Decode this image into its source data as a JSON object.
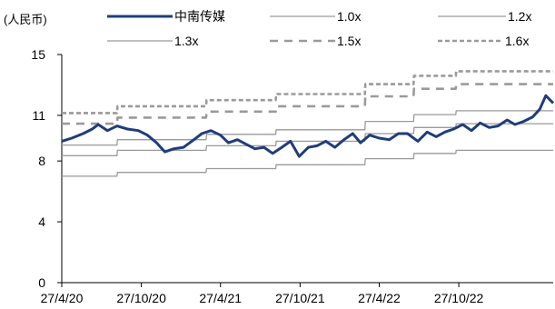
{
  "chart_data": {
    "type": "line",
    "unit_label": "(人民币)",
    "title": "",
    "xlabel": "",
    "ylabel": "",
    "ylim": [
      0,
      15
    ],
    "yticks": [
      0,
      4,
      8,
      11,
      15
    ],
    "xlim": [
      "2020-04-27",
      "2023-06-01"
    ],
    "xtick_labels": [
      "27/4/20",
      "27/10/20",
      "27/4/21",
      "27/10/21",
      "27/4/22",
      "27/10/22"
    ],
    "xtick_dates": [
      "2020-04-27",
      "2020-10-27",
      "2021-04-27",
      "2021-10-27",
      "2022-04-27",
      "2022-10-27"
    ],
    "grid": false,
    "legend_position": "top",
    "colors": {
      "price": "#1f3d7a",
      "band_1.0x": "#9a9a9a",
      "band_1.2x": "#9a9a9a",
      "band_1.3x": "#9a9a9a",
      "band_1.5x": "#9a9a9a",
      "band_1.6x": "#9a9a9a"
    },
    "series": [
      {
        "name": "中南传媒",
        "style": "solid-thick",
        "x": [
          "2020-04-27",
          "2020-05-20",
          "2020-06-15",
          "2020-07-06",
          "2020-07-20",
          "2020-08-10",
          "2020-09-01",
          "2020-09-25",
          "2020-10-20",
          "2020-11-10",
          "2020-12-01",
          "2020-12-20",
          "2021-01-10",
          "2021-02-01",
          "2021-02-25",
          "2021-03-15",
          "2021-04-05",
          "2021-04-27",
          "2021-05-15",
          "2021-06-05",
          "2021-06-25",
          "2021-07-15",
          "2021-08-05",
          "2021-08-25",
          "2021-09-15",
          "2021-10-05",
          "2021-10-25",
          "2021-11-15",
          "2021-12-05",
          "2021-12-25",
          "2022-01-15",
          "2022-02-05",
          "2022-02-25",
          "2022-03-15",
          "2022-04-05",
          "2022-04-27",
          "2022-05-20",
          "2022-06-10",
          "2022-07-01",
          "2022-07-25",
          "2022-08-15",
          "2022-09-05",
          "2022-09-25",
          "2022-10-15",
          "2022-11-05",
          "2022-11-25",
          "2022-12-15",
          "2023-01-05",
          "2023-01-25",
          "2023-02-15",
          "2023-03-05",
          "2023-03-25",
          "2023-04-15",
          "2023-05-01",
          "2023-05-15",
          "2023-06-01"
        ],
        "values": [
          9.3,
          9.5,
          9.8,
          10.1,
          10.4,
          10.0,
          10.3,
          10.1,
          10.0,
          9.7,
          9.2,
          8.6,
          8.8,
          8.9,
          9.4,
          9.8,
          10.0,
          9.7,
          9.2,
          9.4,
          9.1,
          8.8,
          8.9,
          8.5,
          8.9,
          9.3,
          8.3,
          8.9,
          9.0,
          9.3,
          8.9,
          9.4,
          9.8,
          9.2,
          9.7,
          9.5,
          9.4,
          9.8,
          9.8,
          9.3,
          9.9,
          9.6,
          9.9,
          10.1,
          10.4,
          10.0,
          10.5,
          10.2,
          10.3,
          10.7,
          10.4,
          10.6,
          10.9,
          11.4,
          12.3,
          11.8
        ]
      },
      {
        "name": "1.0x",
        "style": "solid-thin",
        "x": [
          "2020-04-27",
          "2020-09-01",
          "2020-09-02",
          "2021-03-25",
          "2021-03-26",
          "2021-09-01",
          "2021-09-02",
          "2022-03-25",
          "2022-03-26",
          "2022-07-15",
          "2022-07-16",
          "2022-10-20",
          "2022-10-21",
          "2023-06-01"
        ],
        "values": [
          7.0,
          7.0,
          7.25,
          7.25,
          7.5,
          7.5,
          7.75,
          7.75,
          8.15,
          8.15,
          8.5,
          8.5,
          8.7,
          8.7
        ]
      },
      {
        "name": "1.2x",
        "style": "solid-thin",
        "x": [
          "2020-04-27",
          "2020-09-01",
          "2020-09-02",
          "2021-03-25",
          "2021-03-26",
          "2021-09-01",
          "2021-09-02",
          "2022-03-25",
          "2022-03-26",
          "2022-07-15",
          "2022-07-16",
          "2022-10-20",
          "2022-10-21",
          "2023-06-01"
        ],
        "values": [
          8.35,
          8.35,
          8.7,
          8.7,
          9.0,
          9.0,
          9.3,
          9.3,
          9.8,
          9.8,
          10.2,
          10.2,
          10.45,
          10.45
        ]
      },
      {
        "name": "1.3x",
        "style": "solid-thin",
        "x": [
          "2020-04-27",
          "2020-09-01",
          "2020-09-02",
          "2021-03-25",
          "2021-03-26",
          "2021-09-01",
          "2021-09-02",
          "2022-03-25",
          "2022-03-26",
          "2022-07-15",
          "2022-07-16",
          "2022-10-20",
          "2022-10-21",
          "2023-06-01"
        ],
        "values": [
          9.05,
          9.05,
          9.4,
          9.4,
          9.75,
          9.75,
          10.05,
          10.05,
          10.6,
          10.6,
          11.05,
          11.05,
          11.3,
          11.3
        ]
      },
      {
        "name": "1.5x",
        "style": "dashed",
        "x": [
          "2020-04-27",
          "2020-09-01",
          "2020-09-02",
          "2021-03-25",
          "2021-03-26",
          "2021-09-01",
          "2021-09-02",
          "2022-03-25",
          "2022-03-26",
          "2022-07-15",
          "2022-07-16",
          "2022-10-20",
          "2022-10-21",
          "2023-06-01"
        ],
        "values": [
          10.45,
          10.45,
          10.85,
          10.85,
          11.25,
          11.25,
          11.6,
          11.6,
          12.25,
          12.25,
          12.75,
          12.75,
          13.05,
          13.05
        ]
      },
      {
        "name": "1.6x",
        "style": "dashed-dense",
        "x": [
          "2020-04-27",
          "2020-09-01",
          "2020-09-02",
          "2021-03-25",
          "2021-03-26",
          "2021-09-01",
          "2021-09-02",
          "2022-03-25",
          "2022-03-26",
          "2022-07-15",
          "2022-07-16",
          "2022-10-20",
          "2022-10-21",
          "2023-06-01"
        ],
        "values": [
          11.15,
          11.15,
          11.6,
          11.6,
          12.0,
          12.0,
          12.4,
          12.4,
          13.05,
          13.05,
          13.6,
          13.6,
          13.9,
          13.9
        ]
      }
    ]
  }
}
